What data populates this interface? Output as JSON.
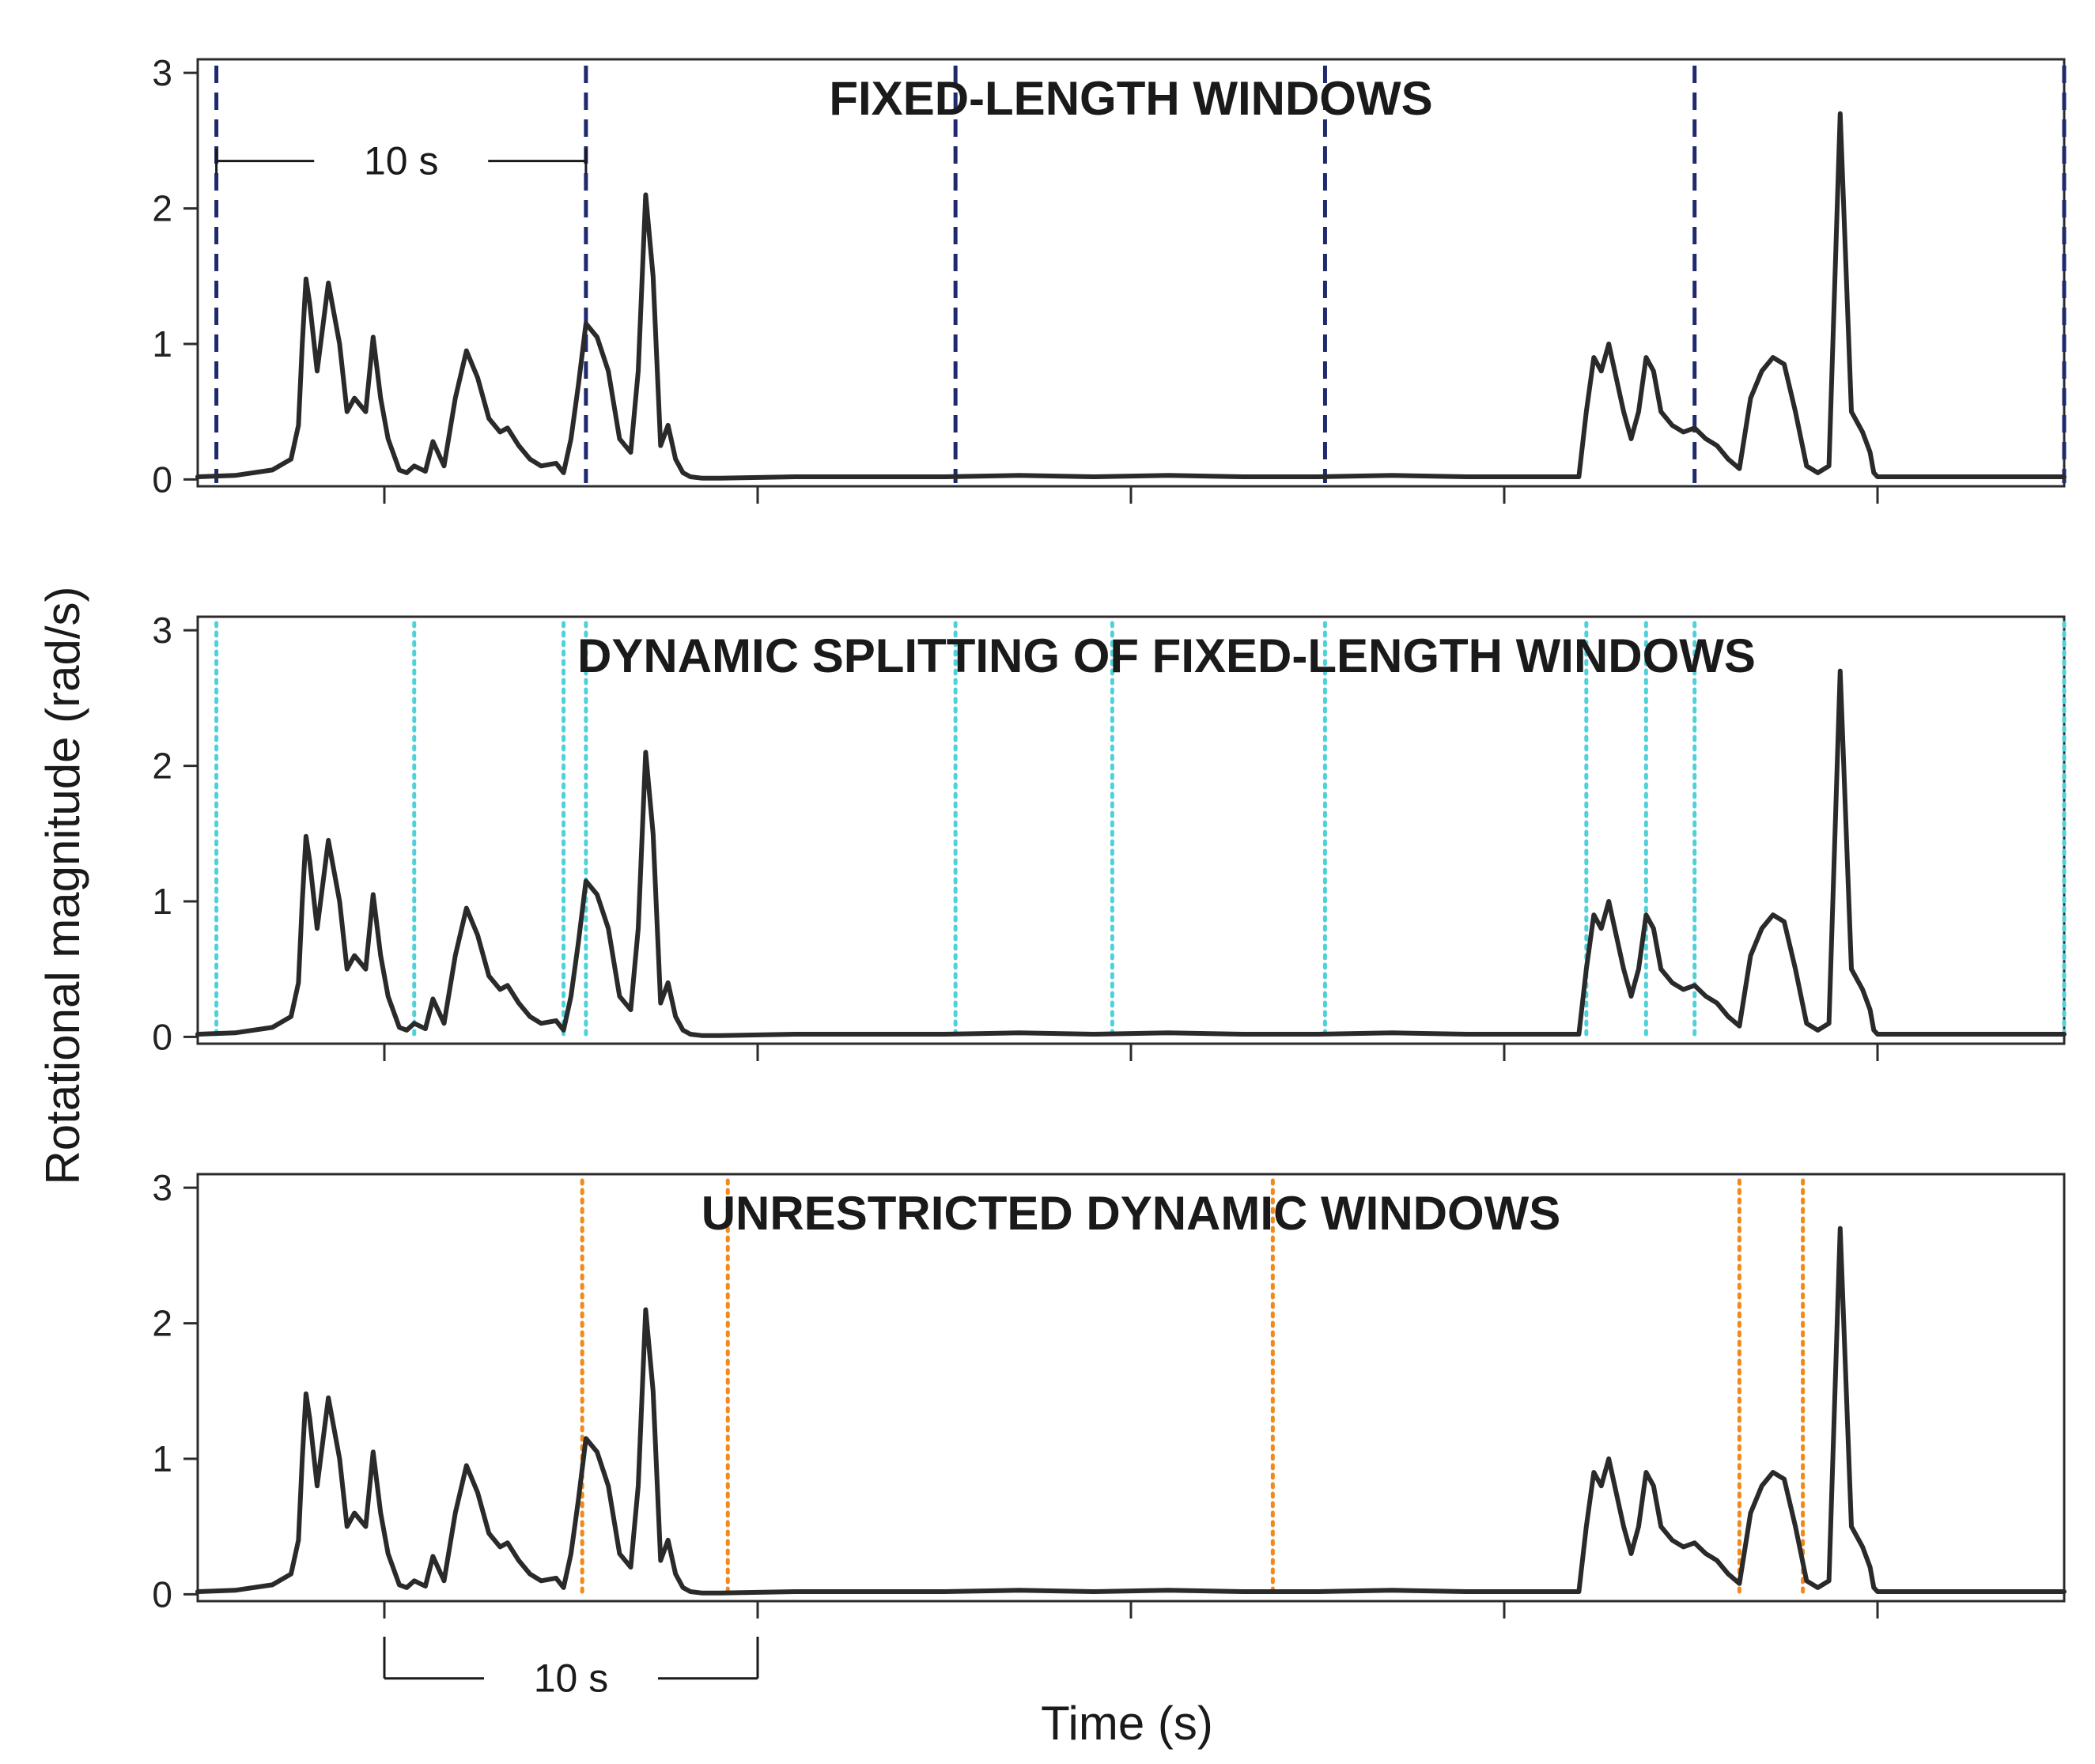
{
  "chart_data": {
    "type": "line",
    "ylabel": "Rotational magnitude (rad/s)",
    "xlabel": "Time (s)",
    "ylim": [
      -0.05,
      3.1
    ],
    "xlim": [
      0,
      50
    ],
    "yticks": [
      0,
      1,
      2,
      3
    ],
    "xticks": [
      5,
      15,
      25,
      35,
      45
    ],
    "grid": false,
    "series": [
      {
        "name": "rotational magnitude",
        "x": [
          0,
          1,
          2,
          2.5,
          2.7,
          2.8,
          2.9,
          3.0,
          3.2,
          3.5,
          3.8,
          4.0,
          4.2,
          4.5,
          4.7,
          4.9,
          5.1,
          5.4,
          5.6,
          5.8,
          6.1,
          6.3,
          6.6,
          6.9,
          7.2,
          7.5,
          7.8,
          8.1,
          8.3,
          8.6,
          8.9,
          9.2,
          9.6,
          9.8,
          10.0,
          10.2,
          10.4,
          10.7,
          11.0,
          11.3,
          11.6,
          11.8,
          12.0,
          12.2,
          12.4,
          12.6,
          12.8,
          13.0,
          13.2,
          13.5,
          14,
          16,
          18,
          20,
          22,
          24,
          26,
          28,
          30,
          32,
          34,
          36,
          37.0,
          37.2,
          37.4,
          37.6,
          37.8,
          38.0,
          38.2,
          38.4,
          38.6,
          38.8,
          39.0,
          39.2,
          39.5,
          39.8,
          40.1,
          40.4,
          40.7,
          41.0,
          41.3,
          41.6,
          41.9,
          42.2,
          42.5,
          42.8,
          43.1,
          43.4,
          43.7,
          44.0,
          44.3,
          44.6,
          44.8,
          44.9,
          45.0,
          45.1,
          45.2,
          45.4,
          45.6,
          46,
          47,
          48,
          50
        ],
        "values": [
          0.02,
          0.03,
          0.07,
          0.15,
          0.4,
          1.0,
          1.48,
          1.3,
          0.8,
          1.45,
          1.0,
          0.5,
          0.6,
          0.5,
          1.05,
          0.6,
          0.3,
          0.07,
          0.05,
          0.1,
          0.06,
          0.28,
          0.1,
          0.6,
          0.95,
          0.75,
          0.45,
          0.35,
          0.38,
          0.25,
          0.15,
          0.1,
          0.12,
          0.05,
          0.3,
          0.7,
          1.15,
          1.05,
          0.8,
          0.3,
          0.2,
          0.8,
          2.1,
          1.5,
          0.25,
          0.4,
          0.15,
          0.05,
          0.02,
          0.01,
          0.01,
          0.02,
          0.02,
          0.02,
          0.03,
          0.02,
          0.03,
          0.02,
          0.02,
          0.03,
          0.02,
          0.02,
          0.02,
          0.5,
          0.9,
          0.8,
          1.0,
          0.75,
          0.5,
          0.3,
          0.5,
          0.9,
          0.8,
          0.5,
          0.4,
          0.35,
          0.38,
          0.3,
          0.25,
          0.15,
          0.08,
          0.6,
          0.8,
          0.9,
          0.85,
          0.5,
          0.1,
          0.05,
          0.1,
          2.7,
          0.5,
          0.35,
          0.2,
          0.05,
          0.02,
          0.02,
          0.02,
          0.02,
          0.02,
          0.02,
          0.02,
          0.02,
          0.02
        ]
      }
    ],
    "panels": [
      {
        "title": "FIXED-LENGTH WINDOWS",
        "window_style": "dashed",
        "window_color": "#1f2a6e",
        "boundaries": [
          0.5,
          10.4,
          20.3,
          30.2,
          40.1,
          50.0
        ]
      },
      {
        "title": "DYNAMIC SPLITTING OF FIXED-LENGTH WINDOWS",
        "window_style": "dotted",
        "window_color": "#4fd1d9",
        "boundaries": [
          0.5,
          5.8,
          9.8,
          10.4,
          20.3,
          24.5,
          30.2,
          37.2,
          38.8,
          40.1,
          50.0
        ]
      },
      {
        "title": "UNRESTRICTED DYNAMIC WINDOWS",
        "window_style": "dotted",
        "window_color": "#f08a1c",
        "boundaries": [
          10.3,
          14.2,
          28.8,
          41.3,
          43.0
        ]
      }
    ],
    "annotations": [
      {
        "label": "10 s",
        "panel": 0,
        "x_start": 0.5,
        "x_end": 10.4,
        "y": 2.35
      },
      {
        "label": "10 s",
        "panel": 2,
        "x_start": 5,
        "x_end": 15,
        "y": -0.62
      }
    ]
  }
}
